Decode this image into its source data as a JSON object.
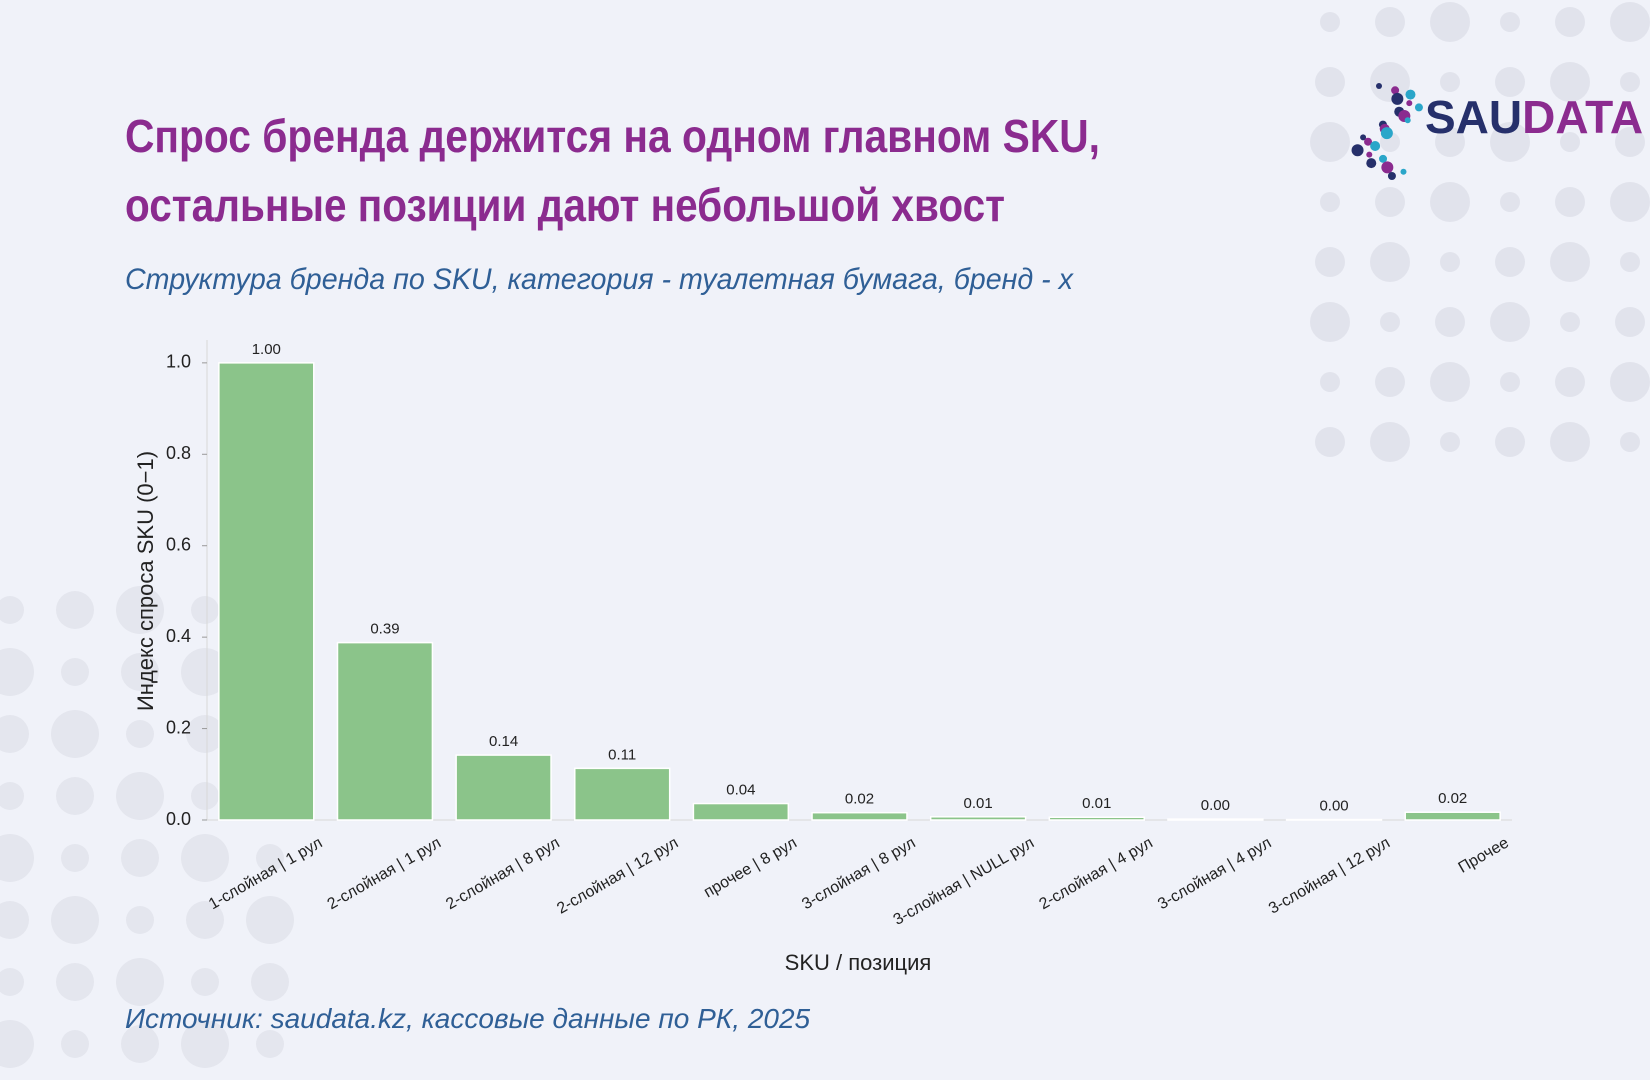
{
  "chart_data": {
    "type": "bar",
    "title": [
      "Спрос бренда держится на одном главном SKU,",
      "остальные позиции дают небольшой хвост"
    ],
    "subtitle": "Структура бренда по SKU, категория - туалетная бумага, бренд - х",
    "categories": [
      "1-слойная | 1 рул",
      "2-слойная | 1 рул",
      "2-слойная | 8 рул",
      "2-слойная | 12 рул",
      "прочее | 8 рул",
      "3-слойная | 8 рул",
      "3-слойная | NULL рул",
      "2-слойная | 4 рул",
      "3-слойная | 4 рул",
      "3-слойная | 12 рул",
      "Прочее"
    ],
    "values": [
      1.0,
      0.388,
      0.142,
      0.113,
      0.036,
      0.016,
      0.007,
      0.006,
      0.002,
      0.001,
      0.017
    ],
    "value_labels": [
      "1.00",
      "0.39",
      "0.14",
      "0.11",
      "0.04",
      "0.02",
      "0.01",
      "0.01",
      "0.00",
      "0.00",
      "0.02"
    ],
    "color": "#8bc48a",
    "ylim": [
      0,
      1.05
    ],
    "yticks": [
      {
        "value": 0,
        "label": "0.0"
      },
      0.2,
      0.4,
      0.6,
      0.8,
      {
        "value": 1,
        "label": "1.0"
      }
    ],
    "y_label": "Индекс спроса SKU (0−1)",
    "x_label": "SKU / позиция",
    "grid": false,
    "source": "Источник: saudata.kz, кассовые данные по РК,  2025",
    "logo": {
      "part1": "SAU",
      "part2": "DATA"
    }
  }
}
